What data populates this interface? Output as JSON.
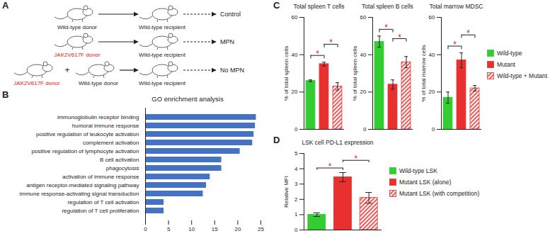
{
  "panel_labels": [
    "A",
    "B",
    "C",
    "D"
  ],
  "diagram": {
    "rows": [
      {
        "donors": [
          {
            "label": "Wild-type donor",
            "color": "#222222"
          }
        ],
        "recipient": "Wild-type recipient",
        "outcome": "Control"
      },
      {
        "donors": [
          {
            "label": "JAK2V617F donor",
            "color": "#e02020"
          }
        ],
        "recipient": "Wild-type recipient",
        "outcome": "MPN"
      },
      {
        "donors": [
          {
            "label": "JAK2V617F donor",
            "color": "#e02020"
          },
          {
            "label": "Wild-type donor",
            "color": "#222222"
          }
        ],
        "joiner": "+",
        "recipient": "Wild-type recipient",
        "outcome": "No MPN"
      }
    ]
  },
  "chart_data": [
    {
      "type": "bar",
      "title": "GO enrichment analysis",
      "orientation": "horizontal",
      "color": "#4472c4",
      "categories": [
        "immunoglobulin receptor binding",
        "humoral immune response",
        "positive regulation of leukocyte activation",
        "complement activation",
        "positive regulation of lymphocyte activation",
        "B cell activation",
        "phagocytosis",
        "activation of immune response",
        "antigen receptor-mediated signaling pathway",
        "immune response-activating signal transduction",
        "regulation of T cell activation",
        "regulation of T cell proliferation"
      ],
      "values": [
        24,
        23.8,
        23.5,
        23.2,
        20.5,
        16.5,
        16.5,
        14,
        13.2,
        12.5,
        4,
        4
      ],
      "xlim": [
        0,
        25
      ],
      "xticks": [
        0,
        5,
        10,
        15,
        20,
        25
      ]
    },
    {
      "type": "bar",
      "title": "Total spleen T cells",
      "ylabel": "% of total spleen cells",
      "tick_labels": "y",
      "series": [
        {
          "name": "Wild-type",
          "color": "#33cc33",
          "values": [
            26
          ],
          "errors": [
            0.5
          ]
        },
        {
          "name": "Mutant",
          "color": "#e8312f",
          "values": [
            35
          ],
          "errors": [
            1
          ]
        },
        {
          "name": "Wild-type + Mutant",
          "color": "#e8312f",
          "line_style": "hatched",
          "values": [
            23
          ],
          "errors": [
            2
          ]
        }
      ],
      "significance": [
        {
          "between": [
            0,
            1
          ],
          "label": "*"
        },
        {
          "between": [
            1,
            2
          ],
          "label": "*"
        }
      ],
      "ylim": [
        0,
        60
      ],
      "yticks": [
        0,
        20,
        40,
        60
      ]
    },
    {
      "type": "bar",
      "title": "Total spleen B cells",
      "ylabel": "% of total spleen cells",
      "tick_labels": "y",
      "series": [
        {
          "name": "Wild-type",
          "color": "#33cc33",
          "values": [
            47
          ],
          "errors": [
            3
          ]
        },
        {
          "name": "Mutant",
          "color": "#e8312f",
          "values": [
            24
          ],
          "errors": [
            2.5
          ]
        },
        {
          "name": "Wild-type + Mutant",
          "color": "#e8312f",
          "line_style": "hatched",
          "values": [
            36
          ],
          "errors": [
            3
          ]
        }
      ],
      "significance": [
        {
          "between": [
            0,
            1
          ],
          "label": "*"
        },
        {
          "between": [
            1,
            2
          ],
          "label": "*"
        }
      ],
      "ylim": [
        0,
        60
      ],
      "yticks": [
        0,
        20,
        40,
        60
      ]
    },
    {
      "type": "bar",
      "title": "Total marrow MDSC",
      "ylabel": "% of total marrow cells",
      "tick_labels": "y",
      "legend": "right",
      "series": [
        {
          "name": "Wild-type",
          "color": "#33cc33",
          "values": [
            17
          ],
          "errors": [
            3
          ]
        },
        {
          "name": "Mutant",
          "color": "#e8312f",
          "values": [
            37
          ],
          "errors": [
            4
          ]
        },
        {
          "name": "Wild-type + Mutant",
          "color": "#e8312f",
          "line_style": "hatched",
          "values": [
            22
          ],
          "errors": [
            1.5
          ]
        }
      ],
      "significance": [
        {
          "between": [
            0,
            1
          ],
          "label": "*"
        },
        {
          "between": [
            1,
            2
          ],
          "label": "*"
        }
      ],
      "ylim": [
        0,
        60
      ],
      "yticks": [
        0,
        20,
        40,
        60
      ]
    },
    {
      "type": "bar",
      "title": "LSK cell PD-L1 expression",
      "ylabel": "Relative MFI",
      "tick_labels": "y",
      "legend": "right",
      "series": [
        {
          "name": "Wild-type LSK",
          "color": "#33cc33",
          "values": [
            1
          ],
          "errors": [
            0.12
          ]
        },
        {
          "name": "Mutant LSK (alone)",
          "color": "#e8312f",
          "values": [
            3.45
          ],
          "errors": [
            0.3
          ]
        },
        {
          "name": "Mutant LSK (with competition)",
          "color": "#e8312f",
          "line_style": "hatched",
          "values": [
            2.1
          ],
          "errors": [
            0.35
          ]
        }
      ],
      "significance": [
        {
          "between": [
            0,
            1
          ],
          "label": "*"
        },
        {
          "between": [
            1,
            2
          ],
          "label": "*"
        }
      ],
      "ylim": [
        0,
        5
      ],
      "yticks": [
        0,
        1,
        2,
        3,
        4,
        5
      ]
    }
  ]
}
